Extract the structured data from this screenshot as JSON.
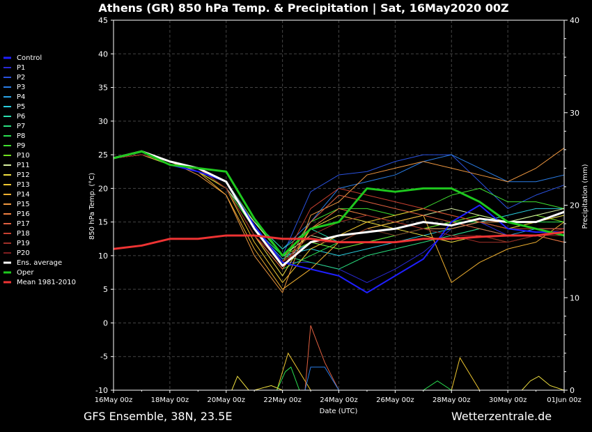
{
  "colors": {
    "background": "#000000",
    "axis": "#ffffff",
    "grid": "#444444",
    "control": "#1f1fff",
    "ens_average": "#ffffff",
    "oper": "#1ec81e",
    "mean": "#ee3333"
  },
  "footer": {
    "left": "GFS Ensemble, 38N, 23.5E",
    "right": "Wetterzentrale.de"
  },
  "chart_data": {
    "type": "line",
    "title": "Athens  (GR)  850 hPa Temp. & Precipitation | Sat, 16May2020 00Z",
    "xlabel": "Date (UTC)",
    "ylabel": "850 hPa Temp. (°C)",
    "ylabel_right": "Precipitation (mm)",
    "ylim": [
      -10,
      45
    ],
    "ylim_right": [
      0,
      40
    ],
    "xlim": [
      0,
      16
    ],
    "x_unit": "days since 16May 00z",
    "grid": true,
    "legend_position": "left",
    "x_tick_labels": [
      "16May 00z",
      "18May 00z",
      "20May 00z",
      "22May 00z",
      "24May 00z",
      "26May 00z",
      "28May 00z",
      "30May 00z",
      "01Jun 00z"
    ],
    "y_ticks": [
      45,
      40,
      35,
      30,
      25,
      20,
      15,
      10,
      5,
      0,
      -5,
      -10
    ],
    "y_right_ticks": [
      40,
      30,
      20,
      10,
      0
    ],
    "series": [
      {
        "name": "Control",
        "color": "#1f1fff",
        "width": 2,
        "x": [
          0,
          1,
          2,
          3,
          4,
          5,
          6,
          7,
          8,
          9,
          10,
          11,
          12,
          13,
          14,
          15,
          16
        ],
        "values": [
          24.5,
          25.5,
          23.5,
          22.5,
          21,
          14.5,
          9,
          8,
          7,
          4.5,
          7,
          9.5,
          15,
          17.5,
          14,
          13.5,
          13.5
        ]
      },
      {
        "name": "P1",
        "color": "#2a2ad6",
        "width": 1,
        "x": [
          0,
          1,
          2,
          3,
          4,
          5,
          6,
          7,
          8,
          9,
          10,
          11,
          12,
          13,
          14,
          15,
          16
        ],
        "values": [
          24.5,
          25.5,
          24,
          23,
          21,
          14,
          9,
          9,
          8,
          6,
          8,
          10.5,
          14,
          15,
          13,
          13,
          13.5
        ]
      },
      {
        "name": "P2",
        "color": "#2a52e0",
        "width": 1,
        "x": [
          0,
          1,
          2,
          3,
          4,
          5,
          6,
          7,
          8,
          9,
          10,
          11,
          12,
          13,
          14,
          15,
          16
        ],
        "values": [
          24.5,
          25,
          24,
          23,
          20,
          15,
          10,
          19.5,
          22,
          22.5,
          24,
          25,
          25,
          21,
          17,
          19,
          20.5
        ]
      },
      {
        "name": "P3",
        "color": "#2a7ee8",
        "width": 1,
        "x": [
          0,
          1,
          2,
          3,
          4,
          5,
          6,
          7,
          8,
          9,
          10,
          11,
          12,
          13,
          14,
          15,
          16
        ],
        "values": [
          24.5,
          25,
          23.5,
          23,
          20,
          15,
          11,
          15,
          20,
          21,
          22,
          24,
          25,
          23,
          21,
          21,
          22
        ]
      },
      {
        "name": "P4",
        "color": "#2aa4e8",
        "width": 1,
        "x": [
          0,
          1,
          2,
          3,
          4,
          5,
          6,
          7,
          8,
          9,
          10,
          11,
          12,
          13,
          14,
          15,
          16
        ],
        "values": [
          24.5,
          25,
          24,
          22.5,
          20,
          14,
          9.5,
          12,
          11,
          12,
          13,
          14,
          13,
          14,
          13,
          14,
          14
        ]
      },
      {
        "name": "P5",
        "color": "#2ad0e0",
        "width": 1,
        "x": [
          0,
          1,
          2,
          3,
          4,
          5,
          6,
          7,
          8,
          9,
          10,
          11,
          12,
          13,
          14,
          15,
          16
        ],
        "values": [
          24.5,
          25,
          23.5,
          22.5,
          21,
          14,
          10,
          11,
          10,
          11,
          12,
          13,
          14,
          15,
          16,
          17,
          17
        ]
      },
      {
        "name": "P6",
        "color": "#2ae0b0",
        "width": 1,
        "x": [
          0,
          1,
          2,
          3,
          4,
          5,
          6,
          7,
          8,
          9,
          10,
          11,
          12,
          13,
          14,
          15,
          16
        ],
        "values": [
          24.5,
          25,
          23.5,
          22.5,
          21,
          15,
          11,
          14,
          12,
          12,
          13,
          14,
          14,
          15,
          15,
          15,
          16
        ]
      },
      {
        "name": "P7",
        "color": "#2ae080",
        "width": 1,
        "x": [
          0,
          1,
          2,
          3,
          4,
          5,
          6,
          7,
          8,
          9,
          10,
          11,
          12,
          13,
          14,
          15,
          16
        ],
        "values": [
          24.5,
          25,
          24,
          22.5,
          21,
          14,
          10,
          9,
          8,
          10,
          11,
          12,
          13,
          14,
          13,
          13,
          13
        ]
      },
      {
        "name": "P8",
        "color": "#2ae050",
        "width": 1,
        "x": [
          0,
          1,
          2,
          3,
          4,
          5,
          6,
          7,
          8,
          9,
          10,
          11,
          12,
          13,
          14,
          15,
          16
        ],
        "values": [
          24.5,
          25,
          23.5,
          22.5,
          20,
          13,
          8,
          10,
          12,
          14,
          13,
          14,
          15,
          15,
          14,
          15,
          15
        ]
      },
      {
        "name": "P9",
        "color": "#40e030",
        "width": 1,
        "x": [
          0,
          1,
          2,
          3,
          4,
          5,
          6,
          7,
          8,
          9,
          10,
          11,
          12,
          13,
          14,
          15,
          16
        ],
        "values": [
          24.5,
          25,
          23.5,
          22.5,
          20,
          14,
          9,
          15,
          17,
          17,
          16,
          17,
          19,
          20,
          18,
          18,
          17
        ]
      },
      {
        "name": "P10",
        "color": "#70e020",
        "width": 1,
        "x": [
          0,
          1,
          2,
          3,
          4,
          5,
          6,
          7,
          8,
          9,
          10,
          11,
          12,
          13,
          14,
          15,
          16
        ],
        "values": [
          24.5,
          25,
          24,
          23,
          21,
          15,
          10,
          12,
          11,
          12,
          13,
          14,
          15,
          16,
          15,
          16,
          15
        ]
      },
      {
        "name": "P11",
        "color": "#d8f0a0",
        "width": 1,
        "x": [
          0,
          1,
          2,
          3,
          4,
          5,
          6,
          7,
          8,
          9,
          10,
          11,
          12,
          13,
          14,
          15,
          16
        ],
        "values": [
          24.5,
          25,
          24,
          23,
          20,
          15,
          10,
          13,
          12,
          14,
          15,
          16,
          17,
          16,
          15,
          16,
          17
        ]
      },
      {
        "name": "P12",
        "color": "#f0e040",
        "width": 1,
        "x": [
          0,
          1,
          2,
          3,
          4,
          5,
          6,
          7,
          8,
          9,
          10,
          11,
          12,
          13,
          14,
          15,
          16
        ],
        "values": [
          24.5,
          25,
          24,
          23,
          20,
          13,
          7,
          14,
          16,
          15,
          14,
          13,
          12,
          13,
          12,
          13,
          12
        ]
      },
      {
        "name": "P13",
        "color": "#f0c830",
        "width": 1,
        "x": [
          0,
          1,
          2,
          3,
          4,
          5,
          6,
          7,
          8,
          9,
          10,
          11,
          12,
          13,
          14,
          15,
          16
        ],
        "values": [
          24.5,
          25,
          24,
          22.5,
          20,
          12,
          6,
          11,
          13,
          15,
          16,
          17,
          16,
          15,
          14,
          15,
          16
        ]
      },
      {
        "name": "P14",
        "color": "#f0b030",
        "width": 1,
        "x": [
          0,
          1,
          2,
          3,
          4,
          5,
          6,
          7,
          8,
          9,
          10,
          11,
          12,
          13,
          14,
          15,
          16
        ],
        "values": [
          24.5,
          25,
          23.5,
          22.5,
          19,
          11,
          5,
          8,
          12,
          14,
          15,
          16,
          6,
          9,
          11,
          12,
          15
        ]
      },
      {
        "name": "P15",
        "color": "#f09840",
        "width": 1,
        "x": [
          0,
          1,
          2,
          3,
          4,
          5,
          6,
          7,
          8,
          9,
          10,
          11,
          12,
          13,
          14,
          15,
          16
        ],
        "values": [
          24.5,
          25,
          24,
          22,
          19,
          10,
          4.5,
          16,
          18,
          22,
          23,
          24,
          23,
          22,
          21,
          23,
          26
        ]
      },
      {
        "name": "P16",
        "color": "#f08040",
        "width": 1,
        "x": [
          0,
          1,
          2,
          3,
          4,
          5,
          6,
          7,
          8,
          9,
          10,
          11,
          12,
          13,
          14,
          15,
          16
        ],
        "values": [
          24.5,
          25,
          24,
          23,
          20,
          13,
          8,
          14,
          17,
          16,
          15,
          14,
          14,
          15,
          15,
          14,
          14
        ]
      },
      {
        "name": "P17",
        "color": "#e06040",
        "width": 1,
        "x": [
          0,
          1,
          2,
          3,
          4,
          5,
          6,
          7,
          8,
          9,
          10,
          11,
          12,
          13,
          14,
          15,
          16
        ],
        "values": [
          24.5,
          25,
          24,
          23,
          20,
          13,
          8,
          15,
          19,
          18,
          17,
          16,
          15,
          14,
          13,
          13,
          12
        ]
      },
      {
        "name": "P18",
        "color": "#c84030",
        "width": 1,
        "x": [
          0,
          1,
          2,
          3,
          4,
          5,
          6,
          7,
          8,
          9,
          10,
          11,
          12,
          13,
          14,
          15,
          16
        ],
        "values": [
          24.5,
          25,
          24,
          23,
          20,
          13,
          9,
          17,
          20,
          19,
          18,
          17,
          16,
          15,
          14,
          14,
          14
        ]
      },
      {
        "name": "P19",
        "color": "#a03028",
        "width": 1,
        "x": [
          0,
          1,
          2,
          3,
          4,
          5,
          6,
          7,
          8,
          9,
          10,
          11,
          12,
          13,
          14,
          15,
          16
        ],
        "values": [
          24.5,
          25,
          24,
          23,
          21,
          14,
          9,
          13,
          15,
          16,
          15,
          14,
          13,
          12,
          12,
          13,
          13
        ]
      },
      {
        "name": "P20",
        "color": "#801e20",
        "width": 1,
        "x": [
          0,
          1,
          2,
          3,
          4,
          5,
          6,
          7,
          8,
          9,
          10,
          11,
          12,
          13,
          14,
          15,
          16
        ],
        "values": [
          24.5,
          25,
          24,
          23,
          20,
          13,
          9,
          12,
          12,
          14,
          13,
          14,
          13,
          13,
          12,
          13,
          14
        ]
      },
      {
        "name": "Ens. average",
        "color": "#ffffff",
        "width": 3,
        "x": [
          0,
          1,
          2,
          3,
          4,
          5,
          6,
          7,
          8,
          9,
          10,
          11,
          12,
          13,
          14,
          15,
          16
        ],
        "values": [
          24.5,
          25.5,
          24,
          23,
          21,
          14,
          8.5,
          12,
          13,
          13.5,
          14,
          15,
          14.5,
          15.5,
          15,
          15,
          16.5
        ]
      },
      {
        "name": "Oper",
        "color": "#1ec81e",
        "width": 3,
        "x": [
          0,
          1,
          2,
          3,
          4,
          5,
          6,
          7,
          8,
          9,
          10,
          11,
          12,
          13,
          14,
          15,
          16
        ],
        "values": [
          24.5,
          25.5,
          23.5,
          23,
          22.5,
          15.5,
          10,
          14,
          15,
          20,
          19.5,
          20,
          20,
          18,
          15,
          14,
          13
        ]
      },
      {
        "name": "Mean 1981-2010",
        "color": "#ee3333",
        "width": 3,
        "x": [
          0,
          1,
          2,
          3,
          4,
          5,
          6,
          7,
          8,
          9,
          10,
          11,
          12,
          13,
          14,
          15,
          16
        ],
        "values": [
          11,
          11.5,
          12.5,
          12.5,
          13,
          13,
          12.5,
          12.5,
          12,
          12,
          12,
          12.5,
          12.5,
          12.8,
          13,
          13,
          13.5
        ]
      }
    ],
    "precipitation": [
      {
        "name": "P13",
        "color": "#f0c830",
        "x": [
          0,
          4.5,
          5,
          5.4,
          5.8,
          6.2,
          7,
          8,
          9,
          10,
          11,
          11.8,
          12,
          12.3,
          13,
          14,
          14.4,
          15,
          15.8,
          16
        ],
        "values": [
          0,
          0,
          0,
          0,
          0,
          4,
          0,
          0,
          0,
          0,
          0,
          0,
          0,
          3.5,
          0,
          0,
          0,
          0,
          0,
          0
        ]
      },
      {
        "name": "P17",
        "color": "#e06040",
        "x": [
          0,
          6,
          6.8,
          7,
          7.5,
          8,
          16
        ],
        "values": [
          0,
          0,
          0,
          7,
          3,
          0,
          0
        ]
      },
      {
        "name": "P3",
        "color": "#2a7ee8",
        "x": [
          0,
          6.8,
          7,
          7.5,
          8,
          16
        ],
        "values": [
          0,
          0,
          2.5,
          2.5,
          0,
          0
        ]
      },
      {
        "name": "P8",
        "color": "#2ae050",
        "x": [
          0,
          5.8,
          6.1,
          6.3,
          6.6,
          11,
          11.5,
          12,
          16
        ],
        "values": [
          0,
          0,
          2,
          2.5,
          0,
          0,
          1,
          0,
          0
        ]
      },
      {
        "name": "P12",
        "color": "#f0e040",
        "x": [
          0,
          4.2,
          4.4,
          4.8,
          5,
          5.6,
          6,
          14.5,
          14.8,
          15.1,
          15.5,
          16
        ],
        "values": [
          0,
          0,
          1.5,
          0,
          0,
          0.5,
          0,
          0,
          1,
          1.5,
          0.5,
          0
        ]
      }
    ]
  }
}
